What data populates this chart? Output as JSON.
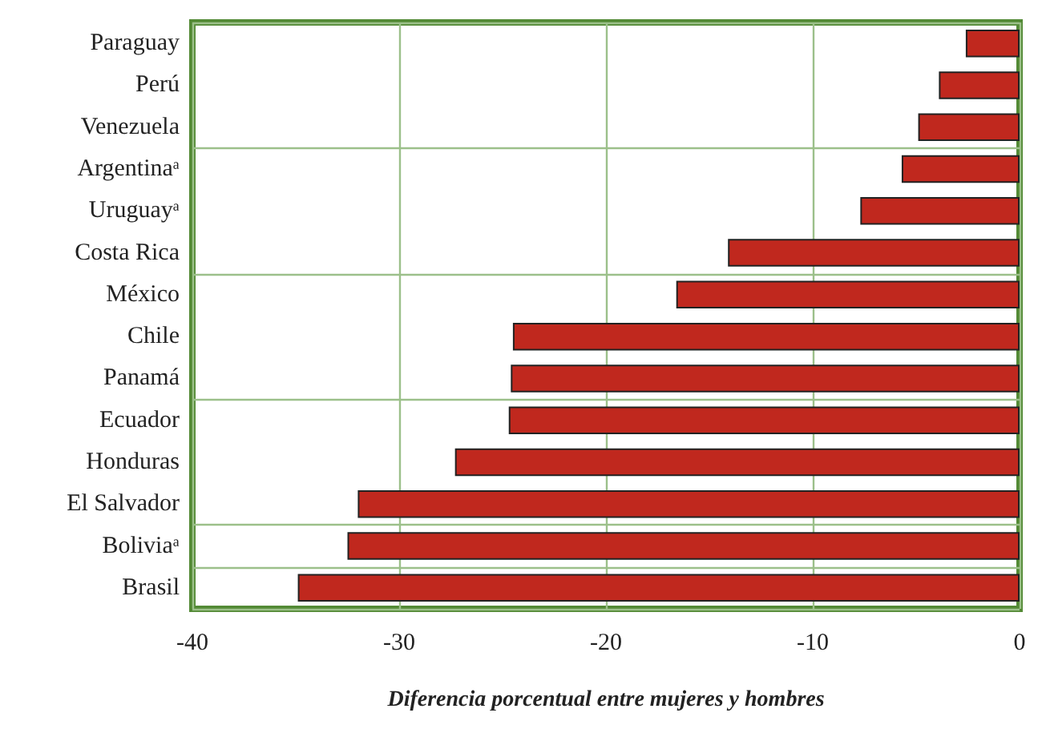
{
  "chart_data": {
    "type": "bar",
    "orientation": "horizontal",
    "xlabel": "Diferencia porcentual entre mujeres y hombres",
    "categories": [
      "Paraguay",
      "Perú",
      "Venezuela",
      "Argentinaᵃ",
      "Uruguayᵃ",
      "Costa Rica",
      "México",
      "Chile",
      "Panamá",
      "Ecuador",
      "Honduras",
      "El Salvador",
      "Boliviaᵃ",
      "Brasil"
    ],
    "values": [
      -2.6,
      -3.9,
      -4.9,
      -5.7,
      -7.7,
      -14.1,
      -16.6,
      -24.5,
      -24.6,
      -24.7,
      -27.3,
      -32.0,
      -32.5,
      -34.9
    ],
    "color": "#c0281e",
    "xlim": [
      -40,
      0
    ],
    "xticks": [
      -40,
      -30,
      -20,
      -10,
      0
    ],
    "grid": true
  }
}
